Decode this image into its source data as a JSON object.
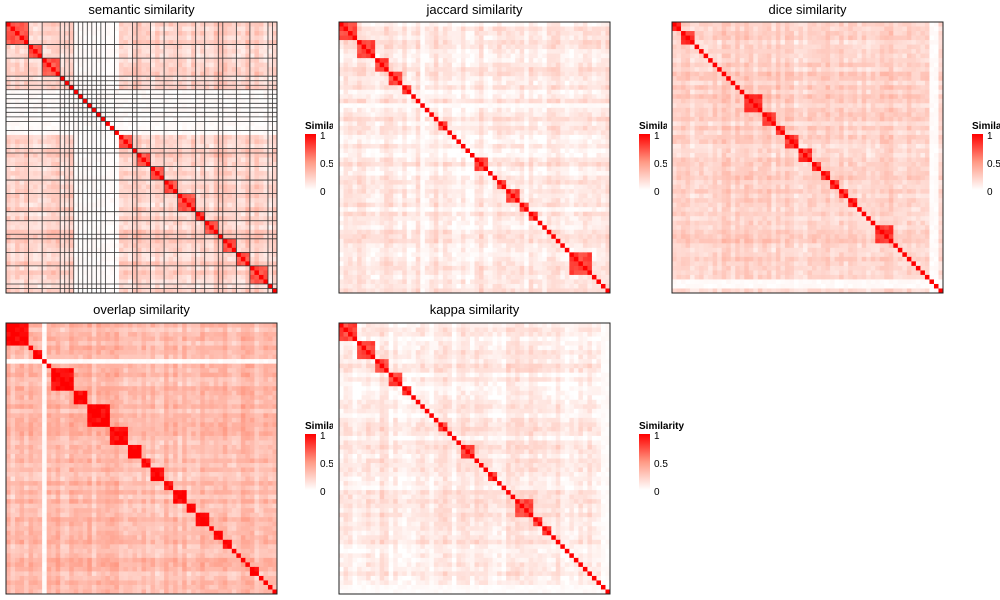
{
  "legend": {
    "title": "Similarity",
    "ticks": [
      "1",
      "0.5",
      "0"
    ]
  },
  "colors": {
    "high": "#ff0000",
    "mid": "#ff9a85",
    "low": "#ffffff",
    "grid": "#333333"
  },
  "chart_data": [
    {
      "type": "heatmap",
      "title": "semantic similarity",
      "n": 60,
      "value_range": [
        0,
        1
      ],
      "clusters": [
        5,
        3,
        4,
        1,
        1,
        1,
        1,
        1,
        1,
        1,
        1,
        1,
        1,
        2,
        4,
        1,
        3,
        3,
        3,
        4,
        2,
        3,
        1,
        3,
        3,
        4,
        1,
        2
      ],
      "blank_columns": [
        15,
        16,
        17,
        18,
        19,
        20,
        21,
        22,
        23,
        24
      ],
      "background": 0.22,
      "within": 0.65,
      "gridlines": true
    },
    {
      "type": "heatmap",
      "title": "jaccard similarity",
      "n": 60,
      "value_range": [
        0,
        1
      ],
      "clusters": [
        4,
        4,
        3,
        3,
        2,
        1,
        1,
        1,
        1,
        1,
        1,
        2,
        1,
        1,
        1,
        1,
        1,
        1,
        3,
        1,
        1,
        2,
        3,
        2,
        2,
        1,
        1,
        1,
        1,
        1,
        1,
        1,
        5
      ],
      "blank_columns": [
        18
      ],
      "background": 0.1,
      "within": 0.7,
      "gridlines": false
    },
    {
      "type": "heatmap",
      "title": "dice similarity",
      "n": 60,
      "value_range": [
        0,
        1
      ],
      "clusters": [
        2,
        3,
        1,
        1,
        1,
        1,
        1,
        1,
        1,
        1,
        1,
        1,
        1,
        4,
        3,
        2,
        3,
        3,
        2,
        2,
        2,
        2,
        2,
        1,
        1,
        1,
        1,
        4,
        1,
        1,
        1
      ],
      "blank_columns": [
        57,
        58
      ],
      "background": 0.22,
      "within": 0.75,
      "gridlines": false
    },
    {
      "type": "heatmap",
      "title": "overlap similarity",
      "n": 60,
      "value_range": [
        0,
        1
      ],
      "clusters": [
        5,
        1,
        3,
        1,
        5,
        3,
        5,
        4,
        3,
        2,
        3,
        2,
        3,
        2,
        3,
        1,
        2,
        2,
        1,
        1,
        1,
        1,
        2
      ],
      "blank_columns": [
        8
      ],
      "background": 0.32,
      "within": 0.9,
      "gridlines": false
    },
    {
      "type": "heatmap",
      "title": "kappa similarity",
      "n": 60,
      "value_range": [
        0,
        1
      ],
      "clusters": [
        4,
        4,
        3,
        3,
        2,
        1,
        1,
        1,
        1,
        1,
        1,
        2,
        1,
        1,
        1,
        3,
        1,
        1,
        1,
        2,
        1,
        1,
        1,
        1,
        4,
        2,
        2,
        1,
        1,
        1,
        1,
        1,
        1,
        1,
        1
      ],
      "blank_columns": [
        58,
        59
      ],
      "background": 0.1,
      "within": 0.7,
      "gridlines": false
    }
  ]
}
